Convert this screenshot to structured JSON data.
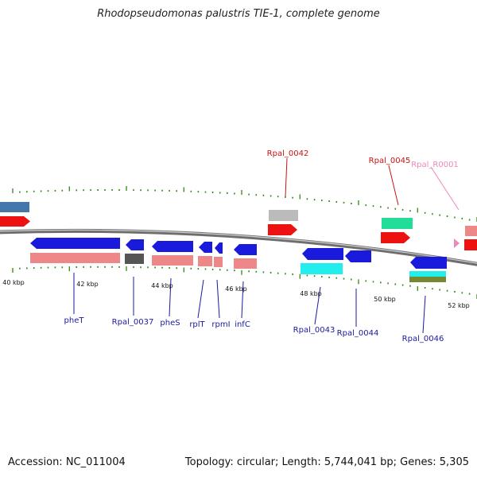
{
  "title": "Rhodopseudomonas palustris TIE-1, complete genome",
  "footer": {
    "accession": "Accession: NC_011004",
    "summary": "Topology: circular; Length: 5,744,041 bp; Genes: 5,305"
  },
  "scale_labels": [
    {
      "text": "40 kbp",
      "kbp": 40
    },
    {
      "text": "42 kbp",
      "kbp": 42
    },
    {
      "text": "44 kbp",
      "kbp": 44
    },
    {
      "text": "46 kbp",
      "kbp": 46
    },
    {
      "text": "48 kbp",
      "kbp": 48
    },
    {
      "text": "50 kbp",
      "kbp": 50
    },
    {
      "text": "52 kbp",
      "kbp": 52
    }
  ],
  "gene_labels": {
    "pheT": "pheT",
    "Rpal_0037": "Rpal_0037",
    "pheS": "pheS",
    "rplT": "rplT",
    "rpmI": "rpmI",
    "infC": "infC",
    "Rpal_0043": "Rpal_0043",
    "Rpal_0044": "Rpal_0044",
    "Rpal_0046": "Rpal_0046",
    "Rpal_0042": "Rpal_0042",
    "Rpal_0045": "Rpal_0045",
    "Rpal_R0001": "Rpal_R0001"
  },
  "colors": {
    "cds": "#1a1adc",
    "cds_forward": "#ee1111",
    "gene_bar": "#ee8888",
    "pseudo_gray": "#555555",
    "light_gray": "#bbbbbb",
    "cyan": "#22eeee",
    "teal_green": "#22dd99",
    "olive": "#778833",
    "steel_blue": "#4477aa",
    "rna_pink": "#ee88bb",
    "tick_green": "#338811",
    "label_blue": "#1a1aa0",
    "label_red": "#cc1111"
  }
}
